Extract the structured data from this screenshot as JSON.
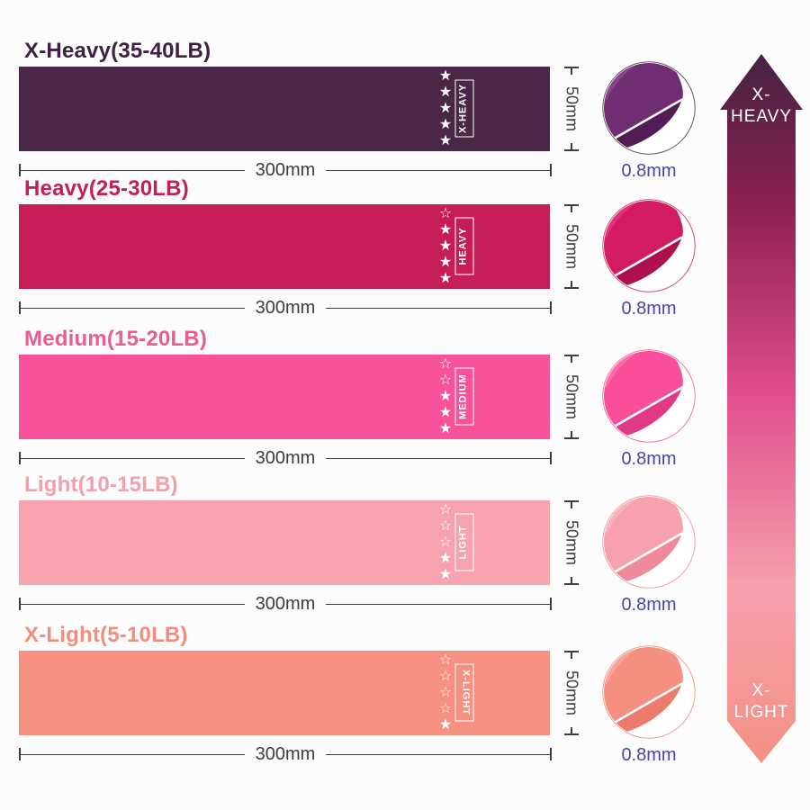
{
  "page": {
    "background": "#fcfcfc"
  },
  "measure": {
    "width_label": "300mm",
    "height_label": "50mm",
    "thickness_label": "0.8mm",
    "line_color": "#3d3d3d",
    "thickness_color": "#4547ab"
  },
  "bands": [
    {
      "title": "X-Heavy(35-40LB)",
      "tag": "X-HEAVY",
      "stars_filled": 5,
      "stars_total": 5,
      "color": "#4a2647",
      "title_color": "#3f2142",
      "fold_light": "#9a55a0",
      "fold_main": "#6f2d72",
      "fold_dark": "#521d55",
      "circle_edge": "#6b5a68"
    },
    {
      "title": "Heavy(25-30LB)",
      "tag": "HEAVY",
      "stars_filled": 4,
      "stars_total": 5,
      "color": "#c51d58",
      "title_color": "#c32055",
      "fold_light": "#ee3f97",
      "fold_main": "#d31b62",
      "fold_dark": "#ad104c",
      "circle_edge": "#cf4f6f"
    },
    {
      "title": "Medium(15-20LB)",
      "tag": "MEDIUM",
      "stars_filled": 3,
      "stars_total": 5,
      "color": "#f7529a",
      "title_color": "#e85d92",
      "fold_light": "#ff83bd",
      "fold_main": "#f94f9b",
      "fold_dark": "#e13a85",
      "circle_edge": "#e87ba1"
    },
    {
      "title": "Light(10-15LB)",
      "tag": "LIGHT",
      "stars_filled": 2,
      "stars_total": 5,
      "color": "#f6a2af",
      "title_color": "#f2a0ac",
      "fold_light": "#fbc3cd",
      "fold_main": "#f7a0ae",
      "fold_dark": "#ef8a9b",
      "circle_edge": "#eda4ae"
    },
    {
      "title": "X-Light(5-10LB)",
      "tag": "X-LIGHT",
      "stars_filled": 1,
      "stars_total": 5,
      "color": "#f59083",
      "title_color": "#f28e7e",
      "fold_light": "#fbb6ab",
      "fold_main": "#f58f80",
      "fold_dark": "#ec7a6d",
      "circle_edge": "#eda095"
    }
  ],
  "arrow": {
    "top_line1": "X-",
    "top_line2": "HEAVY",
    "bottom_line1": "X-",
    "bottom_line2": "LIGHT",
    "gradient": [
      "#452243",
      "#8f2150",
      "#e14e8c",
      "#f6a0ae",
      "#f49083"
    ],
    "gradient_offsets": [
      0,
      0.22,
      0.48,
      0.75,
      1
    ]
  }
}
